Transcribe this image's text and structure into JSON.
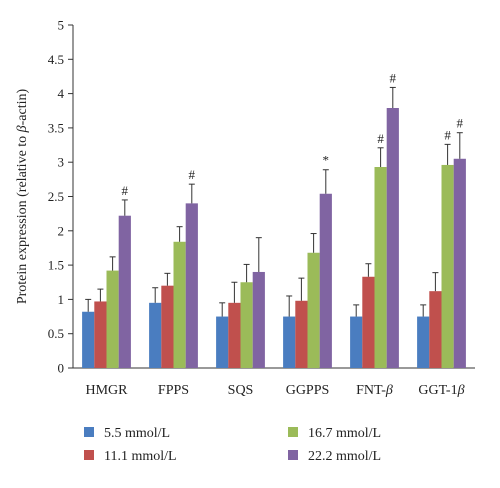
{
  "chart_data": {
    "type": "bar",
    "ylabel_parts": [
      "Protein expression (relative to ",
      "β",
      "-actin)"
    ],
    "ylim": [
      0,
      5
    ],
    "yticks": [
      "0",
      "0.5",
      "1",
      "1.5",
      "2",
      "2.5",
      "3",
      "3.5",
      "4",
      "4.5",
      "5"
    ],
    "categories": [
      {
        "name": "HMGR",
        "beta": false
      },
      {
        "name": "FPPS",
        "beta": false
      },
      {
        "name": "SQS",
        "beta": false
      },
      {
        "name": "GGPPS",
        "beta": false
      },
      {
        "name": "FNT-",
        "beta": true
      },
      {
        "name": "GGT-1",
        "beta": true
      }
    ],
    "beta_symbol": "β",
    "series": [
      {
        "name": "5.5 mmol/L",
        "color": "#4a7dc0",
        "values": [
          0.82,
          0.95,
          0.75,
          0.75,
          0.75,
          0.75
        ],
        "errors": [
          0.18,
          0.22,
          0.2,
          0.3,
          0.17,
          0.17
        ],
        "marks": [
          "",
          "",
          "",
          "",
          "",
          ""
        ]
      },
      {
        "name": "11.1 mmol/L",
        "color": "#c0504d",
        "values": [
          0.97,
          1.2,
          0.95,
          0.98,
          1.33,
          1.12
        ],
        "errors": [
          0.18,
          0.18,
          0.3,
          0.33,
          0.19,
          0.27
        ],
        "marks": [
          "",
          "",
          "",
          "",
          "",
          ""
        ]
      },
      {
        "name": "16.7 mmol/L",
        "color": "#9bbb59",
        "values": [
          1.42,
          1.84,
          1.25,
          1.68,
          2.93,
          2.96
        ],
        "errors": [
          0.2,
          0.22,
          0.26,
          0.28,
          0.28,
          0.3
        ],
        "marks": [
          "",
          "",
          "",
          "",
          "#",
          "#"
        ]
      },
      {
        "name": "22.2 mmol/L",
        "color": "#8064a2",
        "values": [
          2.22,
          2.4,
          1.4,
          2.54,
          3.79,
          3.05
        ],
        "errors": [
          0.23,
          0.28,
          0.5,
          0.35,
          0.3,
          0.38
        ],
        "marks": [
          "#",
          "#",
          "",
          "*",
          "#",
          "#"
        ]
      }
    ]
  }
}
